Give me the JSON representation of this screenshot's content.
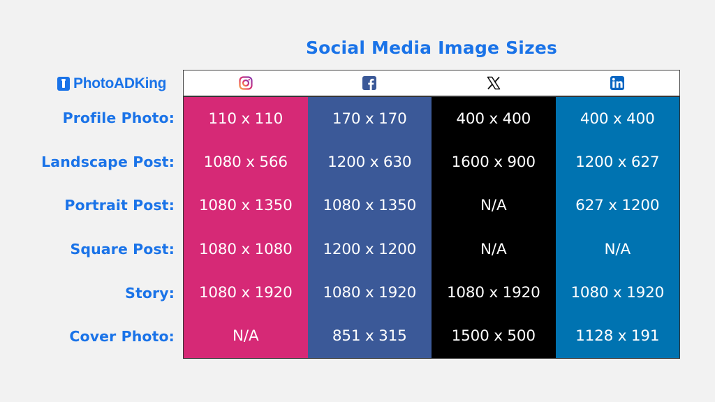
{
  "title": "Social Media Image Sizes",
  "logo": {
    "text": "PhotoADKing"
  },
  "colors": {
    "accent": "#1a73e8",
    "instagram": "#d62976",
    "facebook": "#3b5998",
    "x": "#000000",
    "linkedin": "#0073b1"
  },
  "platforms": [
    {
      "name": "Instagram",
      "icon": "instagram-icon"
    },
    {
      "name": "Facebook",
      "icon": "facebook-icon"
    },
    {
      "name": "X",
      "icon": "x-icon"
    },
    {
      "name": "LinkedIn",
      "icon": "linkedin-icon"
    }
  ],
  "rows": [
    "Profile Photo:",
    "Landscape Post:",
    "Portrait Post:",
    "Square Post:",
    "Story:",
    "Cover Photo:"
  ],
  "instagram": [
    "110 x 110",
    "1080 x 566",
    "1080 x 1350",
    "1080 x 1080",
    "1080 x 1920",
    "N/A"
  ],
  "facebook": [
    "170 x 170",
    "1200 x 630",
    "1080 x 1350",
    "1200 x 1200",
    "1080 x 1920",
    "851 x 315"
  ],
  "x": [
    "400 x 400",
    "1600 x 900",
    "N/A",
    "N/A",
    "1080 x 1920",
    "1500 x 500"
  ],
  "linkedin": [
    "400 x 400",
    "1200 x 627",
    "627 x 1200",
    "N/A",
    "1080 x 1920",
    "1128 x 191"
  ]
}
